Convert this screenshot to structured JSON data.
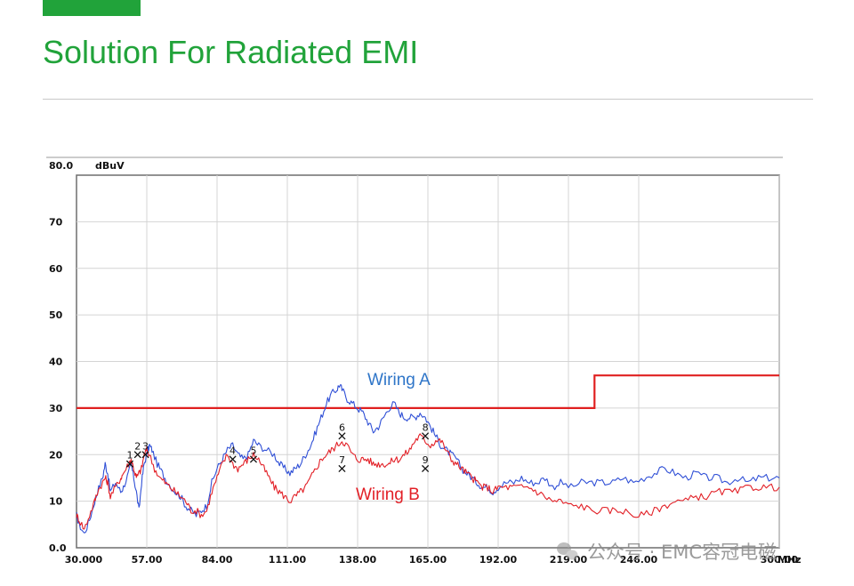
{
  "page": {
    "title": "Solution For Radiated EMI",
    "accent_color": "#21a33a"
  },
  "watermark": {
    "text": "公众号 · EMC容冠电磁",
    "icon": "wechat-icon"
  },
  "chart_data": {
    "type": "line",
    "ylabel": "dBuV",
    "xlabel": "MHz",
    "xlim": [
      30,
      300
    ],
    "ylim": [
      0,
      80
    ],
    "x_ticks": [
      30,
      57,
      84,
      111,
      138,
      165,
      192,
      219,
      246,
      300
    ],
    "x_tick_labels": [
      "30.000",
      "57.00",
      "84.00",
      "111.00",
      "138.00",
      "165.00",
      "192.00",
      "219.00",
      "246.00",
      "300.00"
    ],
    "y_ticks": [
      0,
      10,
      20,
      30,
      40,
      50,
      60,
      70,
      80
    ],
    "y_tick_labels": [
      "0.0",
      "10",
      "20",
      "30",
      "40",
      "50",
      "60",
      "70",
      "80.0"
    ],
    "grid": true,
    "limit_line": {
      "color": "#e02020",
      "points": [
        [
          30,
          30
        ],
        [
          229,
          30
        ],
        [
          229,
          37
        ],
        [
          300,
          37
        ]
      ]
    },
    "series": [
      {
        "name": "Wiring A",
        "color": "#2f4fd6",
        "label_color": "#2e75c8",
        "points": [
          [
            30,
            7
          ],
          [
            31,
            5
          ],
          [
            33,
            3
          ],
          [
            35,
            6
          ],
          [
            37,
            10
          ],
          [
            38,
            12
          ],
          [
            40,
            15
          ],
          [
            41,
            18
          ],
          [
            42,
            16
          ],
          [
            43,
            12
          ],
          [
            45,
            14
          ],
          [
            47,
            12
          ],
          [
            48,
            13
          ],
          [
            50,
            16
          ],
          [
            51,
            18
          ],
          [
            52,
            15
          ],
          [
            53,
            12
          ],
          [
            54,
            8
          ],
          [
            55,
            14
          ],
          [
            56,
            18
          ],
          [
            57,
            20
          ],
          [
            58,
            22
          ],
          [
            59,
            21
          ],
          [
            61,
            18
          ],
          [
            63,
            16
          ],
          [
            65,
            14
          ],
          [
            68,
            12
          ],
          [
            70,
            11
          ],
          [
            72,
            9
          ],
          [
            74,
            8
          ],
          [
            76,
            7
          ],
          [
            78,
            8
          ],
          [
            80,
            9
          ],
          [
            82,
            14
          ],
          [
            84,
            17
          ],
          [
            86,
            19
          ],
          [
            88,
            21
          ],
          [
            90,
            22
          ],
          [
            92,
            20
          ],
          [
            94,
            19
          ],
          [
            96,
            20
          ],
          [
            98,
            23
          ],
          [
            100,
            22
          ],
          [
            103,
            21
          ],
          [
            106,
            20
          ],
          [
            108,
            18
          ],
          [
            110,
            17
          ],
          [
            112,
            16
          ],
          [
            114,
            17
          ],
          [
            116,
            18
          ],
          [
            118,
            20
          ],
          [
            120,
            22
          ],
          [
            122,
            25
          ],
          [
            124,
            28
          ],
          [
            126,
            31
          ],
          [
            128,
            33
          ],
          [
            130,
            34
          ],
          [
            131,
            35
          ],
          [
            132,
            34
          ],
          [
            134,
            32
          ],
          [
            136,
            31
          ],
          [
            138,
            30
          ],
          [
            140,
            29
          ],
          [
            142,
            27
          ],
          [
            144,
            25
          ],
          [
            146,
            26
          ],
          [
            148,
            28
          ],
          [
            150,
            30
          ],
          [
            152,
            31
          ],
          [
            154,
            29
          ],
          [
            156,
            28
          ],
          [
            158,
            28
          ],
          [
            160,
            28
          ],
          [
            162,
            29
          ],
          [
            164,
            28
          ],
          [
            166,
            26
          ],
          [
            168,
            24
          ],
          [
            170,
            22
          ],
          [
            172,
            21
          ],
          [
            174,
            20
          ],
          [
            176,
            19
          ],
          [
            178,
            17
          ],
          [
            180,
            16
          ],
          [
            182,
            15
          ],
          [
            184,
            14
          ],
          [
            186,
            13
          ],
          [
            188,
            13
          ],
          [
            190,
            12
          ],
          [
            192,
            13
          ],
          [
            195,
            14
          ],
          [
            198,
            14
          ],
          [
            201,
            15
          ],
          [
            204,
            14
          ],
          [
            207,
            14
          ],
          [
            210,
            15
          ],
          [
            213,
            13
          ],
          [
            216,
            14
          ],
          [
            220,
            13
          ],
          [
            224,
            14
          ],
          [
            228,
            14
          ],
          [
            232,
            14
          ],
          [
            236,
            14
          ],
          [
            240,
            15
          ],
          [
            244,
            14
          ],
          [
            248,
            15
          ],
          [
            252,
            16
          ],
          [
            256,
            17
          ],
          [
            260,
            16
          ],
          [
            264,
            15
          ],
          [
            268,
            16
          ],
          [
            272,
            15
          ],
          [
            276,
            15
          ],
          [
            280,
            14
          ],
          [
            284,
            15
          ],
          [
            288,
            14
          ],
          [
            292,
            15
          ],
          [
            296,
            15
          ],
          [
            300,
            15
          ]
        ]
      },
      {
        "name": "Wiring B",
        "color": "#e21f26",
        "label_color": "#e21f26",
        "points": [
          [
            30,
            7
          ],
          [
            31,
            6
          ],
          [
            33,
            4
          ],
          [
            35,
            7
          ],
          [
            37,
            10
          ],
          [
            38,
            12
          ],
          [
            40,
            14
          ],
          [
            41,
            15
          ],
          [
            42,
            14
          ],
          [
            43,
            11
          ],
          [
            45,
            13
          ],
          [
            47,
            15
          ],
          [
            48,
            16
          ],
          [
            50,
            18
          ],
          [
            51,
            19
          ],
          [
            52,
            17
          ],
          [
            53,
            15
          ],
          [
            54,
            16
          ],
          [
            55,
            17
          ],
          [
            56,
            20
          ],
          [
            57,
            21
          ],
          [
            58,
            20
          ],
          [
            60,
            17
          ],
          [
            62,
            15
          ],
          [
            64,
            14
          ],
          [
            66,
            13
          ],
          [
            68,
            12
          ],
          [
            70,
            11
          ],
          [
            72,
            10
          ],
          [
            74,
            8
          ],
          [
            76,
            8
          ],
          [
            78,
            7
          ],
          [
            80,
            8
          ],
          [
            82,
            12
          ],
          [
            84,
            15
          ],
          [
            86,
            18
          ],
          [
            88,
            20
          ],
          [
            90,
            18
          ],
          [
            92,
            17
          ],
          [
            94,
            18
          ],
          [
            96,
            19
          ],
          [
            98,
            20
          ],
          [
            100,
            19
          ],
          [
            102,
            17
          ],
          [
            104,
            15
          ],
          [
            106,
            13
          ],
          [
            108,
            12
          ],
          [
            110,
            11
          ],
          [
            112,
            10
          ],
          [
            114,
            11
          ],
          [
            116,
            12
          ],
          [
            118,
            13
          ],
          [
            120,
            15
          ],
          [
            122,
            17
          ],
          [
            124,
            19
          ],
          [
            126,
            20
          ],
          [
            128,
            21
          ],
          [
            130,
            22
          ],
          [
            132,
            23
          ],
          [
            134,
            22
          ],
          [
            136,
            20
          ],
          [
            138,
            19
          ],
          [
            140,
            19
          ],
          [
            142,
            19
          ],
          [
            144,
            18
          ],
          [
            146,
            18
          ],
          [
            148,
            18
          ],
          [
            150,
            18
          ],
          [
            152,
            19
          ],
          [
            154,
            19
          ],
          [
            156,
            20
          ],
          [
            158,
            21
          ],
          [
            160,
            23
          ],
          [
            162,
            24
          ],
          [
            164,
            23
          ],
          [
            166,
            22
          ],
          [
            168,
            23
          ],
          [
            170,
            23
          ],
          [
            172,
            21
          ],
          [
            174,
            19
          ],
          [
            176,
            18
          ],
          [
            178,
            17
          ],
          [
            180,
            16
          ],
          [
            182,
            15
          ],
          [
            184,
            14
          ],
          [
            186,
            13
          ],
          [
            188,
            13
          ],
          [
            190,
            12
          ],
          [
            192,
            13
          ],
          [
            195,
            13
          ],
          [
            198,
            13
          ],
          [
            201,
            13
          ],
          [
            204,
            13
          ],
          [
            207,
            12
          ],
          [
            210,
            11
          ],
          [
            213,
            10
          ],
          [
            216,
            10
          ],
          [
            220,
            9
          ],
          [
            224,
            9
          ],
          [
            228,
            8
          ],
          [
            232,
            8
          ],
          [
            236,
            8
          ],
          [
            240,
            8
          ],
          [
            244,
            7
          ],
          [
            248,
            7
          ],
          [
            252,
            8
          ],
          [
            256,
            9
          ],
          [
            260,
            10
          ],
          [
            264,
            10
          ],
          [
            268,
            11
          ],
          [
            272,
            11
          ],
          [
            276,
            12
          ],
          [
            280,
            12
          ],
          [
            284,
            12
          ],
          [
            288,
            13
          ],
          [
            292,
            13
          ],
          [
            296,
            13
          ],
          [
            300,
            13
          ]
        ]
      }
    ],
    "markers": [
      {
        "label": "1",
        "x": 50.5,
        "y": 18
      },
      {
        "label": "2",
        "x": 53.5,
        "y": 20
      },
      {
        "label": "3",
        "x": 56.5,
        "y": 20
      },
      {
        "label": "4",
        "x": 90,
        "y": 19
      },
      {
        "label": "5",
        "x": 98,
        "y": 19
      },
      {
        "label": "6",
        "x": 132,
        "y": 24
      },
      {
        "label": "7",
        "x": 132,
        "y": 17
      },
      {
        "label": "8",
        "x": 164,
        "y": 24
      },
      {
        "label": "9",
        "x": 164,
        "y": 17
      }
    ]
  }
}
